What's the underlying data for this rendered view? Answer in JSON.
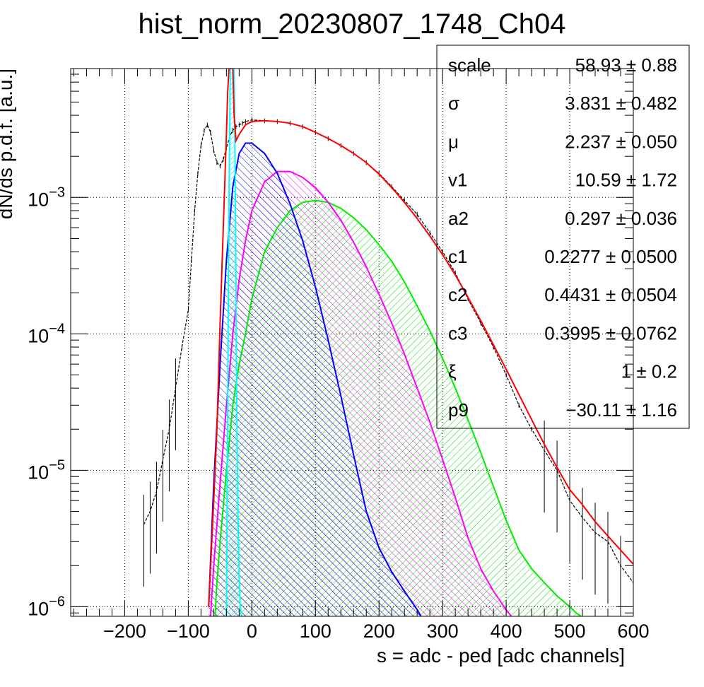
{
  "chart_data": {
    "type": "line",
    "title": "hist_norm_20230807_1748_Ch04",
    "xlabel": "s = adc - ped [adc channels]",
    "ylabel": "dN/ds p.d.f. [a.u.]",
    "xlim": [
      -285,
      600
    ],
    "ylim": [
      8.5e-07,
      0.0088
    ],
    "yscale": "log",
    "grid": true,
    "x_ticks": [
      -200,
      -100,
      0,
      100,
      200,
      300,
      400,
      500,
      600
    ],
    "x_tick_labels": [
      "−200",
      "−100",
      "0",
      "100",
      "200",
      "300",
      "400",
      "500",
      "600"
    ],
    "y_ticks": [
      {
        "value": 1e-06,
        "base": "10",
        "exp": "−6"
      },
      {
        "value": 1e-05,
        "base": "10",
        "exp": "−5"
      },
      {
        "value": 0.0001,
        "base": "10",
        "exp": "−4"
      },
      {
        "value": 0.001,
        "base": "10",
        "exp": "−3"
      }
    ],
    "series": [
      {
        "role": "data-histogram",
        "color": "#000000",
        "x": [
          -170,
          -160,
          -150,
          -140,
          -130,
          -120,
          -110,
          -100,
          -95,
          -90,
          -85,
          -80,
          -75,
          -70,
          -65,
          -60,
          -55,
          -50,
          -45,
          -40,
          -35,
          -30,
          -25,
          -20,
          -15,
          -10,
          0,
          20,
          40,
          60,
          80,
          100,
          120,
          140,
          160,
          180,
          200,
          220,
          240,
          260,
          280,
          300,
          320,
          340,
          360,
          380,
          400,
          420,
          440,
          460,
          480,
          500,
          520,
          540,
          560,
          580,
          600
        ],
        "y": [
          4e-06,
          5e-06,
          7e-06,
          1.2e-05,
          2e-05,
          4e-05,
          8e-05,
          0.00015,
          0.00035,
          0.0008,
          0.0015,
          0.0024,
          0.0031,
          0.0034,
          0.003,
          0.0022,
          0.0018,
          0.0017,
          0.0019,
          0.0023,
          0.0028,
          0.0031,
          0.0033,
          0.0034,
          0.0035,
          0.0036,
          0.0037,
          0.00365,
          0.0036,
          0.0035,
          0.0033,
          0.003,
          0.0027,
          0.0024,
          0.0021,
          0.0018,
          0.0015,
          0.0012,
          0.00095,
          0.00075,
          0.00055,
          0.0004,
          0.00028,
          0.00018,
          0.00012,
          8e-05,
          5e-05,
          3e-05,
          2e-05,
          1.4e-05,
          1e-05,
          6e-06,
          4.5e-06,
          3.5e-06,
          3e-06,
          2e-06,
          1.5e-06
        ]
      },
      {
        "role": "total-fit",
        "color": "#ff0000",
        "x": [
          -68,
          -60,
          -55,
          -50,
          -45,
          -40,
          -38,
          -36,
          -34,
          -32,
          -30,
          -28,
          -25,
          -20,
          -10,
          0,
          20,
          40,
          60,
          80,
          100,
          120,
          140,
          160,
          180,
          200,
          220,
          240,
          260,
          280,
          300,
          320,
          340,
          360,
          380,
          400,
          420,
          440,
          460,
          480,
          500,
          520,
          540,
          560,
          580,
          600
        ],
        "y": [
          1e-06,
          6e-06,
          2e-05,
          0.00012,
          0.0006,
          0.003,
          0.006,
          0.0088,
          0.0088,
          0.0088,
          0.0088,
          0.004,
          0.0026,
          0.0029,
          0.0034,
          0.0036,
          0.00365,
          0.0036,
          0.0035,
          0.0033,
          0.003,
          0.0027,
          0.0024,
          0.0021,
          0.0018,
          0.00148,
          0.00118,
          0.00092,
          0.0007,
          0.00052,
          0.00038,
          0.00027,
          0.000185,
          0.000125,
          8.3e-05,
          5.5e-05,
          3.6e-05,
          2.35e-05,
          1.55e-05,
          1.05e-05,
          7.2e-06,
          5.6e-06,
          4.2e-06,
          3.3e-06,
          2.6e-06,
          2.05e-06
        ]
      },
      {
        "role": "pedestal-component",
        "color": "#00ffff",
        "x": [
          -40,
          -38,
          -36,
          -34,
          -32,
          -30,
          -28,
          -26,
          -24,
          -22,
          -20,
          -18,
          -16
        ],
        "y": [
          8.5e-07,
          4e-05,
          0.001,
          0.0088,
          0.0088,
          0.0088,
          0.0088,
          0.001,
          4e-05,
          5e-06,
          1.6e-06,
          1e-06,
          8.5e-07
        ]
      },
      {
        "role": "1-pe-component",
        "color": "#0000ff",
        "x": [
          -68,
          -60,
          -50,
          -40,
          -30,
          -20,
          -10,
          0,
          20,
          40,
          60,
          80,
          100,
          120,
          140,
          160,
          180,
          200,
          220,
          240,
          260,
          266
        ],
        "y": [
          1e-06,
          8e-06,
          6e-05,
          0.00035,
          0.0012,
          0.0021,
          0.0025,
          0.0025,
          0.0021,
          0.0015,
          0.0009,
          0.00048,
          0.00022,
          9e-05,
          3.5e-05,
          1.3e-05,
          5e-06,
          2.7e-06,
          1.8e-06,
          1.3e-06,
          9.5e-07,
          8.5e-07
        ]
      },
      {
        "role": "2-pe-component",
        "color": "#ff00ff",
        "x": [
          -65,
          -60,
          -50,
          -40,
          -30,
          -20,
          -10,
          0,
          20,
          40,
          60,
          80,
          100,
          120,
          140,
          160,
          180,
          200,
          220,
          240,
          260,
          280,
          300,
          320,
          340,
          360,
          380,
          400,
          408
        ],
        "y": [
          8.5e-07,
          2e-06,
          8e-06,
          3e-05,
          0.0001,
          0.00025,
          0.00048,
          0.0008,
          0.0013,
          0.00155,
          0.00155,
          0.0014,
          0.00118,
          0.00092,
          0.00068,
          0.00047,
          0.00031,
          0.000195,
          0.00012,
          7.1e-05,
          4e-05,
          2.25e-05,
          1.2e-05,
          6.3e-06,
          3.2e-06,
          1.9e-06,
          1.3e-06,
          9.5e-07,
          8.5e-07
        ]
      },
      {
        "role": "3-pe-component",
        "color": "#00ee00",
        "x": [
          -58,
          -55,
          -50,
          -40,
          -30,
          -20,
          -10,
          0,
          20,
          40,
          60,
          80,
          100,
          120,
          140,
          160,
          180,
          200,
          220,
          240,
          260,
          280,
          300,
          320,
          340,
          360,
          380,
          400,
          420,
          440,
          460,
          480,
          500,
          510,
          518
        ],
        "y": [
          8.5e-07,
          1.5e-06,
          3e-06,
          1e-05,
          3e-05,
          6e-05,
          0.0001,
          0.00018,
          0.0004,
          0.0006,
          0.0008,
          0.00092,
          0.00095,
          0.00092,
          0.00083,
          0.00071,
          0.00058,
          0.00045,
          0.00034,
          0.00024,
          0.00016,
          0.000105,
          6.6e-05,
          4e-05,
          2.35e-05,
          1.35e-05,
          7.6e-06,
          4.3e-06,
          2.6e-06,
          1.9e-06,
          1.5e-06,
          1.2e-06,
          1e-06,
          9e-07,
          8.5e-07
        ]
      }
    ],
    "stats_box": {
      "rows": [
        {
          "name": "scale",
          "value": "58.93",
          "error": "0.88"
        },
        {
          "name": "σ",
          "value": "3.831",
          "error": "0.482"
        },
        {
          "name": "μ",
          "value": "2.237",
          "error": "0.050"
        },
        {
          "name": "v1",
          "value": "10.59",
          "error": "1.72"
        },
        {
          "name": "a2",
          "value": "0.297",
          "error": "0.036"
        },
        {
          "name": "c1",
          "value": "0.2277",
          "error": "0.0500"
        },
        {
          "name": "c2",
          "value": "0.4431",
          "error": "0.0504"
        },
        {
          "name": "c3",
          "value": "0.3995",
          "error": "0.0762"
        },
        {
          "name": "ξ",
          "value": "1",
          "error": "0.2"
        },
        {
          "name": "p9",
          "value": "−30.11",
          "error": "1.16"
        }
      ]
    }
  }
}
